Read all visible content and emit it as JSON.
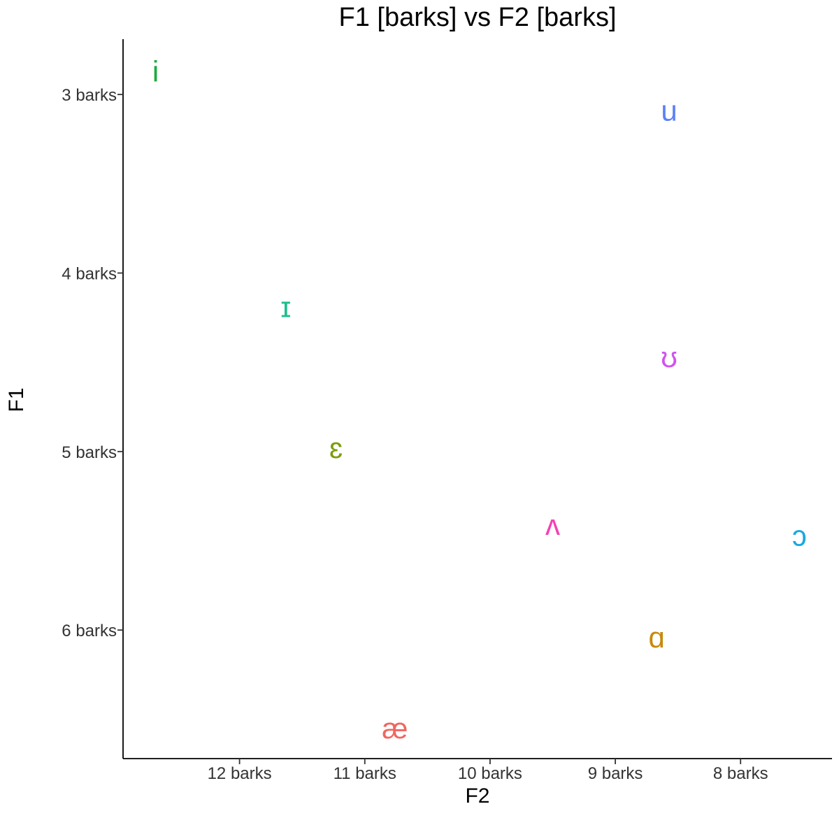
{
  "chart_data": {
    "type": "scatter",
    "title": "F1 [barks] vs F2 [barks]",
    "xlabel": "F2",
    "ylabel": "F1",
    "x_reversed": true,
    "y_reversed": true,
    "xlim": [
      12.93,
      7.27
    ],
    "ylim": [
      2.69,
      6.72
    ],
    "x_ticks": [
      {
        "value": 12,
        "label": "12 barks"
      },
      {
        "value": 11,
        "label": "11 barks"
      },
      {
        "value": 10,
        "label": "10 barks"
      },
      {
        "value": 9,
        "label": "9 barks"
      },
      {
        "value": 8,
        "label": "8 barks"
      }
    ],
    "y_ticks": [
      {
        "value": 3,
        "label": "3 barks"
      },
      {
        "value": 4,
        "label": "4 barks"
      },
      {
        "value": 5,
        "label": "5 barks"
      },
      {
        "value": 6,
        "label": "6 barks"
      }
    ],
    "grid": false,
    "legend": "none",
    "points": [
      {
        "label": "i",
        "x": 12.67,
        "y": 2.87,
        "color": "#1aaa3c"
      },
      {
        "label": "u",
        "x": 8.57,
        "y": 3.09,
        "color": "#5c82f6"
      },
      {
        "label": "ɪ",
        "x": 11.63,
        "y": 4.19,
        "color": "#1ebd8f"
      },
      {
        "label": "ʊ",
        "x": 8.57,
        "y": 4.47,
        "color": "#d054ee"
      },
      {
        "label": "ɛ",
        "x": 11.23,
        "y": 4.98,
        "color": "#7f9c0c"
      },
      {
        "label": "ʌ",
        "x": 9.5,
        "y": 5.41,
        "color": "#f640b6"
      },
      {
        "label": "ɔ",
        "x": 7.53,
        "y": 5.47,
        "color": "#1aa9df"
      },
      {
        "label": "ɑ",
        "x": 8.67,
        "y": 6.04,
        "color": "#c88a0c"
      },
      {
        "label": "æ",
        "x": 10.76,
        "y": 6.55,
        "color": "#f0665f"
      }
    ]
  }
}
